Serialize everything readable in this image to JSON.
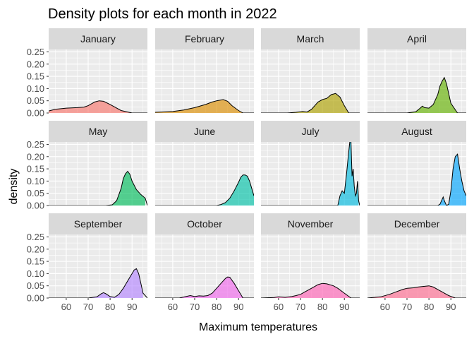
{
  "chart_data": {
    "type": "area",
    "title": "Density plots for each month in 2022",
    "xlabel": "Maximum temperatures",
    "ylabel": "density",
    "x_ticks": [
      60,
      70,
      80,
      90
    ],
    "y_ticks": [
      0.0,
      0.05,
      0.1,
      0.15,
      0.2,
      0.25
    ],
    "y_tick_labels": [
      "0.00",
      "0.05",
      "0.10",
      "0.15",
      "0.20",
      "0.25"
    ],
    "x_tick_labels": [
      "60",
      "70",
      "80",
      "90"
    ],
    "xlim": [
      52,
      97
    ],
    "ylim": [
      0,
      0.26
    ],
    "facet_layout": "3 rows x 4 columns",
    "grid": true,
    "panels": [
      {
        "name": "January",
        "fill": "#F8766D",
        "x": [
          52,
          55,
          60,
          65,
          68,
          70,
          73,
          75,
          77,
          80,
          85,
          90
        ],
        "y": [
          0.008,
          0.015,
          0.02,
          0.022,
          0.024,
          0.03,
          0.045,
          0.05,
          0.048,
          0.035,
          0.01,
          0.0
        ]
      },
      {
        "name": "February",
        "fill": "#DB8E00",
        "x": [
          52,
          55,
          60,
          65,
          70,
          75,
          78,
          80,
          83,
          85,
          87,
          90,
          92
        ],
        "y": [
          0.003,
          0.004,
          0.006,
          0.012,
          0.022,
          0.035,
          0.045,
          0.05,
          0.055,
          0.048,
          0.03,
          0.01,
          0.0
        ]
      },
      {
        "name": "March",
        "fill": "#AEA200",
        "x": [
          64,
          68,
          71,
          73,
          75,
          78,
          80,
          82,
          84,
          86,
          88,
          90,
          92
        ],
        "y": [
          0.0,
          0.003,
          0.006,
          0.004,
          0.015,
          0.045,
          0.055,
          0.06,
          0.075,
          0.08,
          0.065,
          0.03,
          0.0
        ]
      },
      {
        "name": "April",
        "fill": "#64B200",
        "x": [
          70,
          74,
          76,
          77,
          78,
          80,
          82,
          84,
          85,
          86,
          87,
          88,
          90,
          93
        ],
        "y": [
          0.0,
          0.005,
          0.02,
          0.028,
          0.022,
          0.02,
          0.035,
          0.075,
          0.11,
          0.13,
          0.145,
          0.12,
          0.04,
          0.0
        ]
      },
      {
        "name": "May",
        "fill": "#00BD5C",
        "x": [
          78,
          81,
          83,
          85,
          86,
          87,
          88,
          89,
          90,
          92,
          94,
          96
        ],
        "y": [
          0.0,
          0.003,
          0.02,
          0.07,
          0.11,
          0.13,
          0.14,
          0.128,
          0.1,
          0.065,
          0.045,
          0.03
        ]
      },
      {
        "name": "June",
        "fill": "#00C1A7",
        "x": [
          80,
          82,
          84,
          86,
          88,
          90,
          91,
          92,
          93,
          94,
          95,
          96,
          97
        ],
        "y": [
          0.0,
          0.004,
          0.012,
          0.03,
          0.06,
          0.095,
          0.115,
          0.125,
          0.125,
          0.12,
          0.1,
          0.07,
          0.04
        ]
      },
      {
        "name": "July",
        "fill": "#00BADE",
        "x": [
          87,
          88,
          89,
          90,
          91,
          92,
          92.6,
          93,
          93.5,
          94,
          94.5,
          95,
          95.5,
          96,
          96.5
        ],
        "y": [
          0.0,
          0.04,
          0.06,
          0.05,
          0.13,
          0.22,
          0.27,
          0.26,
          0.12,
          0.15,
          0.08,
          0.04,
          0.05,
          0.1,
          0.02
        ]
      },
      {
        "name": "August",
        "fill": "#00A6FF",
        "x": [
          84,
          85,
          86,
          86.5,
          87,
          88,
          89,
          90,
          91,
          92,
          93,
          94,
          95,
          96,
          97
        ],
        "y": [
          0.0,
          0.005,
          0.025,
          0.035,
          0.02,
          0.0,
          0.005,
          0.06,
          0.15,
          0.2,
          0.21,
          0.15,
          0.1,
          0.06,
          0.04
        ]
      },
      {
        "name": "September",
        "fill": "#B385FF",
        "x": [
          70,
          74,
          76,
          77,
          78,
          80,
          82,
          84,
          86,
          88,
          90,
          91,
          92,
          93,
          94,
          95
        ],
        "y": [
          0.0,
          0.005,
          0.018,
          0.022,
          0.018,
          0.006,
          0.003,
          0.015,
          0.04,
          0.07,
          0.1,
          0.115,
          0.12,
          0.1,
          0.06,
          0.02
        ]
      },
      {
        "name": "October",
        "fill": "#EF67EB",
        "x": [
          63,
          66,
          68,
          70,
          72,
          74,
          76,
          78,
          80,
          82,
          84,
          85,
          86,
          88,
          90,
          92
        ],
        "y": [
          0.0,
          0.006,
          0.01,
          0.006,
          0.009,
          0.008,
          0.01,
          0.02,
          0.04,
          0.06,
          0.08,
          0.086,
          0.085,
          0.06,
          0.03,
          0.0
        ]
      },
      {
        "name": "November",
        "fill": "#FF63B6",
        "x": [
          52,
          58,
          60,
          63,
          66,
          68,
          70,
          72,
          75,
          78,
          80,
          82,
          85,
          87,
          90,
          93
        ],
        "y": [
          0.0,
          0.002,
          0.005,
          0.003,
          0.006,
          0.01,
          0.015,
          0.025,
          0.04,
          0.055,
          0.06,
          0.058,
          0.05,
          0.04,
          0.02,
          0.0
        ]
      },
      {
        "name": "December",
        "fill": "#FF6C91",
        "x": [
          52,
          58,
          62,
          65,
          68,
          70,
          73,
          75,
          78,
          80,
          82,
          84,
          86,
          89,
          92
        ],
        "y": [
          0.0,
          0.005,
          0.015,
          0.025,
          0.035,
          0.04,
          0.042,
          0.045,
          0.048,
          0.05,
          0.045,
          0.035,
          0.025,
          0.01,
          0.0
        ]
      }
    ]
  }
}
